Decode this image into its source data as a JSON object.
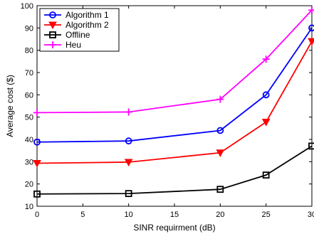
{
  "chart_data": {
    "type": "line",
    "x": [
      0,
      10,
      20,
      25,
      30
    ],
    "xlabel": "SINR requirment (dB)",
    "ylabel": "Average cost ($)",
    "xlim": [
      0,
      30
    ],
    "ylim": [
      10,
      100
    ],
    "xticks": [
      0,
      5,
      10,
      15,
      20,
      25,
      30
    ],
    "yticks": [
      10,
      20,
      30,
      40,
      50,
      60,
      70,
      80,
      90,
      100
    ],
    "grid": false,
    "legend_position": "top-left",
    "series": [
      {
        "name": "Algorithm 1",
        "color": "#0000ff",
        "marker": "circle",
        "values": [
          38.8,
          39.3,
          44,
          60,
          90
        ]
      },
      {
        "name": "Algorithm 2",
        "color": "#ff0000",
        "marker": "triangle-down",
        "values": [
          29.3,
          29.8,
          34,
          47.8,
          84
        ]
      },
      {
        "name": "Offline",
        "color": "#000000",
        "marker": "square",
        "values": [
          15.5,
          15.7,
          17.6,
          24,
          37
        ]
      },
      {
        "name": "Heu",
        "color": "#ff00ff",
        "marker": "plus",
        "values": [
          52,
          52.3,
          58,
          76,
          98
        ]
      }
    ]
  }
}
